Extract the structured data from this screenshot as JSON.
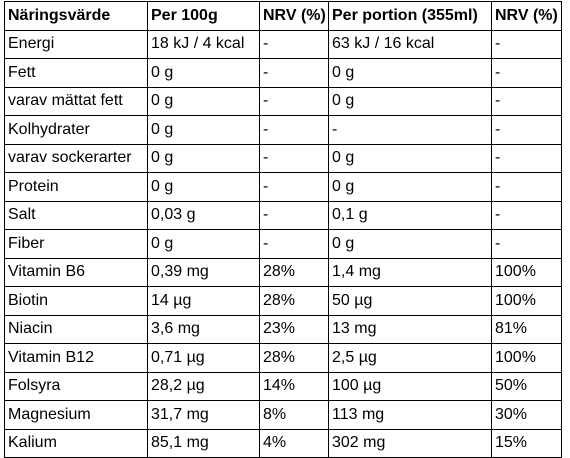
{
  "table": {
    "headers": [
      "Näringsvärde",
      "Per 100g",
      "NRV (%)",
      "Per portion (355ml)",
      "NRV (%)"
    ],
    "rows": [
      [
        "Energi",
        "18 kJ / 4 kcal",
        "-",
        "63 kJ / 16 kcal",
        "-"
      ],
      [
        "Fett",
        "0 g",
        "-",
        "0 g",
        "-"
      ],
      [
        "varav mättat fett",
        "0 g",
        "-",
        "0 g",
        "-"
      ],
      [
        "Kolhydrater",
        "0 g",
        "-",
        "-",
        "-"
      ],
      [
        "varav sockerarter",
        "0 g",
        "-",
        "0 g",
        "-"
      ],
      [
        "Protein",
        "0 g",
        "-",
        "0 g",
        "-"
      ],
      [
        "Salt",
        "0,03 g",
        "-",
        "0,1 g",
        "-"
      ],
      [
        "Fiber",
        "0 g",
        "-",
        "0 g",
        "-"
      ],
      [
        "Vitamin B6",
        "0,39 mg",
        "28%",
        "1,4 mg",
        "100%"
      ],
      [
        "Biotin",
        "14 µg",
        "28%",
        "50 µg",
        "100%"
      ],
      [
        "Niacin",
        "3,6 mg",
        "23%",
        "13 mg",
        "81%"
      ],
      [
        "Vitamin B12",
        "0,71 µg",
        "28%",
        "2,5 µg",
        "100%"
      ],
      [
        "Folsyra",
        "28,2 µg",
        "14%",
        "100 µg",
        "50%"
      ],
      [
        "Magnesium",
        "31,7 mg",
        "8%",
        "113 mg",
        "30%"
      ],
      [
        "Kalium",
        "85,1 mg",
        "4%",
        "302 mg",
        "15%"
      ]
    ]
  }
}
